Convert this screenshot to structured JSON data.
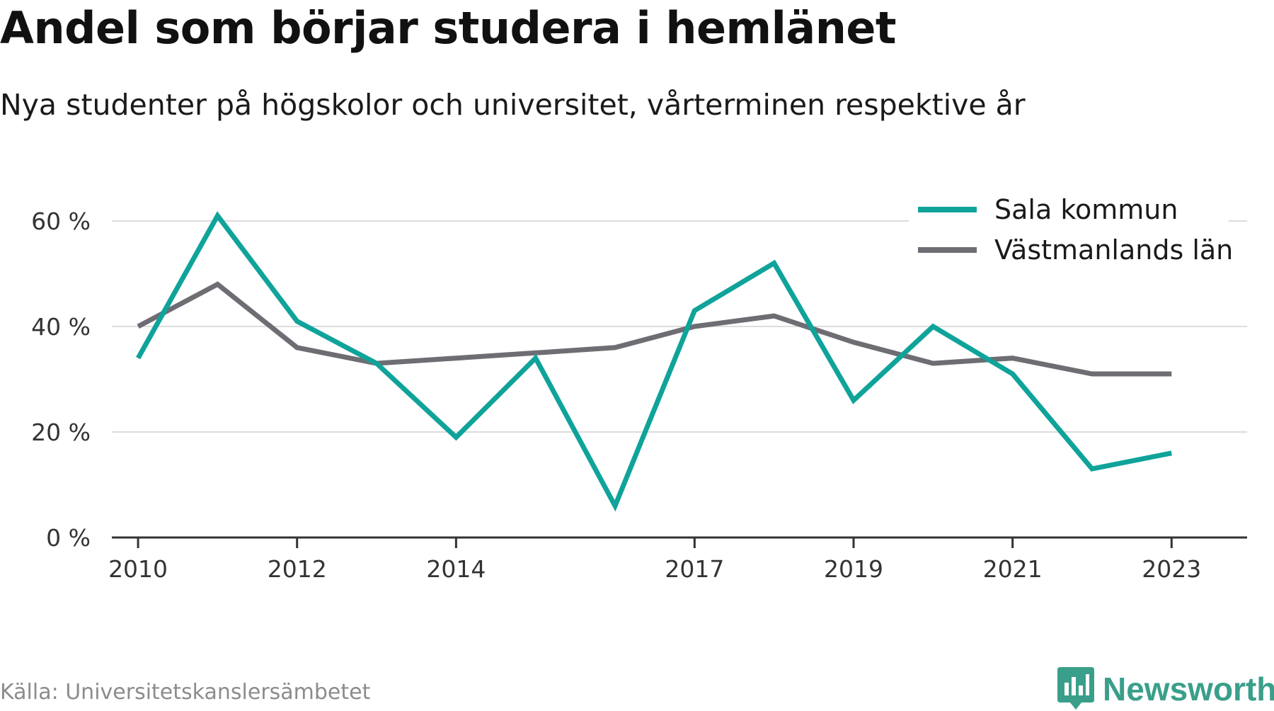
{
  "title": "Andel som börjar studera i hemlänet",
  "subtitle": "Nya studenter på högskolor och universitet, vårterminen respektive år",
  "source": "Källa: Universitetskanslersämbetet",
  "brand": {
    "name": "Newsworthy",
    "icon": "newsworthy-logo-icon",
    "color": "#3a9f8a"
  },
  "chart_data": {
    "type": "line",
    "x": [
      2010,
      2011,
      2012,
      2013,
      2014,
      2015,
      2016,
      2017,
      2018,
      2019,
      2020,
      2021,
      2022,
      2023
    ],
    "x_tick_labels": [
      "2010",
      "2012",
      "2014",
      "2017",
      "2019",
      "2021",
      "2023"
    ],
    "y_ticks": [
      0,
      20,
      40,
      60
    ],
    "y_tick_labels": [
      "0 %",
      "20 %",
      "40 %",
      "60 %"
    ],
    "ylim": [
      0,
      70
    ],
    "ylabel": "",
    "xlabel": "",
    "grid": true,
    "legend_position": "top-right",
    "series": [
      {
        "name": "Sala kommun",
        "color": "#0fa39a",
        "values": [
          34,
          61,
          41,
          33,
          19,
          34,
          6,
          43,
          52,
          26,
          40,
          31,
          13,
          16
        ]
      },
      {
        "name": "Västmanlands län",
        "color": "#6e6d73",
        "values": [
          40,
          48,
          36,
          33,
          34,
          35,
          36,
          40,
          42,
          37,
          33,
          34,
          31,
          31
        ]
      }
    ]
  }
}
